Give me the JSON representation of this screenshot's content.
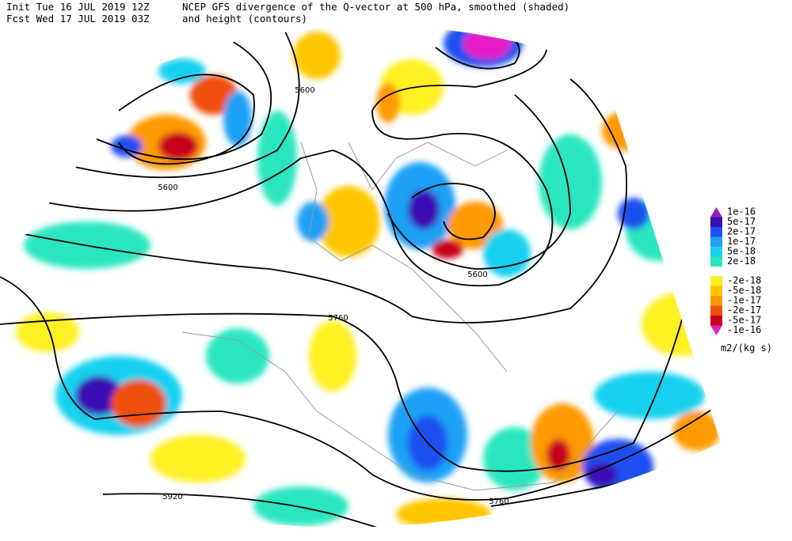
{
  "header": {
    "init": "Init  Tue 16 JUL 2019 12Z",
    "title": "NCEP GFS divergence of the Q-vector at 500 hPa, smoothed (shaded)",
    "fcst": "Fcst Wed 17 JUL 2019 03Z",
    "subtitle": "and height (contours)"
  },
  "contour_labels": [
    "5600",
    "5600",
    "5600",
    "5760",
    "5760",
    "5920"
  ],
  "colorbar": {
    "units": "m2/(kg s)",
    "levels": [
      {
        "label": "1e-16",
        "color": "#9a1fb8"
      },
      {
        "label": "5e-17",
        "color": "#3a10b4"
      },
      {
        "label": "2e-17",
        "color": "#1f4ff0"
      },
      {
        "label": "1e-17",
        "color": "#1fa0f5"
      },
      {
        "label": "5e-18",
        "color": "#19d2f0"
      },
      {
        "label": "2e-18",
        "color": "#2ae6c0"
      },
      {
        "label": "-2e-18",
        "color": "#fff021"
      },
      {
        "label": "-5e-18",
        "color": "#ffc700"
      },
      {
        "label": "-1e-17",
        "color": "#ff9a00"
      },
      {
        "label": "-2e-17",
        "color": "#f0500a"
      },
      {
        "label": "-5e-17",
        "color": "#c8001e"
      },
      {
        "label": "-1e-16",
        "color": "#e61ec8"
      }
    ]
  }
}
